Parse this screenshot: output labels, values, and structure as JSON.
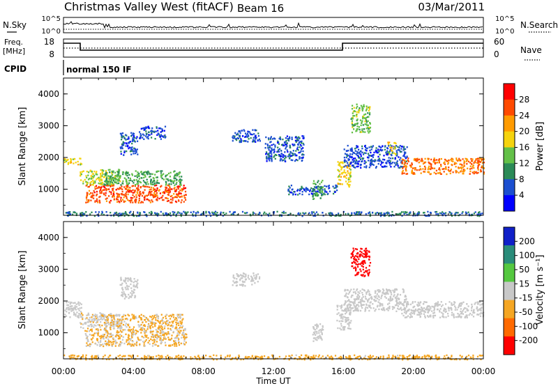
{
  "header": {
    "title": "Christmas Valley West (fitACF)",
    "beam": "Beam 16",
    "date": "03/Mar/2011"
  },
  "top_panels": {
    "nsky_label": "N.Sky",
    "nsky_ticks": [
      "10^5",
      "10^0"
    ],
    "nsearch_label": "N.Search",
    "nsearch_ticks": [
      "10^5",
      "10^0"
    ],
    "freq_label_1": "Freq.",
    "freq_label_2": "[MHz]",
    "freq_ticks": [
      "18",
      "8"
    ],
    "nave_label": "Nave",
    "nave_ticks": [
      "60",
      "0"
    ],
    "cpid_label": "CPID",
    "cpid_value": "normal 150 IF"
  },
  "colors": {
    "power": [
      "#0000ff",
      "#1c4fd0",
      "#2b8a57",
      "#63c048",
      "#f5d30e",
      "#ff9b00",
      "#ff4a00",
      "#ff0000"
    ],
    "velocity": [
      "#1020c8",
      "#2a8c7a",
      "#55c840",
      "#c8c8c8",
      "#f5a623",
      "#ff6a00",
      "#ff0000"
    ]
  },
  "chart_data": [
    {
      "type": "heatmap",
      "name": "power",
      "ylabel": "Slant Range [km]",
      "yticks": [
        "4000",
        "3000",
        "2000",
        "1000"
      ],
      "ylim": [
        180,
        4500
      ],
      "xlim": [
        0,
        24
      ],
      "colorbar_label": "Power [dB]",
      "colorbar_ticks": [
        "28",
        "24",
        "20",
        "16",
        "12",
        "8",
        "4"
      ],
      "colorbar_range": [
        0,
        32
      ],
      "features": [
        {
          "t": [
            0.0,
            1.0
          ],
          "range": [
            1780,
            2000
          ],
          "value": 18
        },
        {
          "t": [
            0.9,
            3.2
          ],
          "range": [
            1150,
            1650
          ],
          "value": 16
        },
        {
          "t": [
            1.2,
            7.0
          ],
          "range": [
            600,
            1150
          ],
          "value": 26
        },
        {
          "t": [
            2.3,
            6.8
          ],
          "range": [
            1150,
            1600
          ],
          "value": 12
        },
        {
          "t": [
            3.2,
            4.2
          ],
          "range": [
            2100,
            2800
          ],
          "value": 6
        },
        {
          "t": [
            4.3,
            5.8
          ],
          "range": [
            2600,
            3000
          ],
          "value": 6
        },
        {
          "t": [
            9.6,
            11.2
          ],
          "range": [
            2500,
            2900
          ],
          "value": 6
        },
        {
          "t": [
            11.5,
            13.7
          ],
          "range": [
            1900,
            2700
          ],
          "value": 6
        },
        {
          "t": [
            12.8,
            15.6
          ],
          "range": [
            850,
            1150
          ],
          "value": 6
        },
        {
          "t": [
            14.2,
            14.8
          ],
          "range": [
            700,
            1300
          ],
          "value": 12
        },
        {
          "t": [
            15.6,
            16.4
          ],
          "range": [
            1100,
            1900
          ],
          "value": 18
        },
        {
          "t": [
            16.4,
            17.5
          ],
          "range": [
            2800,
            3700
          ],
          "value": 14
        },
        {
          "t": [
            16.0,
            19.6
          ],
          "range": [
            1700,
            2400
          ],
          "value": 6
        },
        {
          "t": [
            18.5,
            19.0
          ],
          "range": [
            2100,
            2500
          ],
          "value": 18
        },
        {
          "t": [
            19.3,
            24.0
          ],
          "range": [
            1500,
            2000
          ],
          "value": 24
        },
        {
          "t": [
            0.0,
            24.0
          ],
          "range": [
            180,
            320
          ],
          "value": 8
        }
      ]
    },
    {
      "type": "heatmap",
      "name": "velocity",
      "ylabel": "Slant Range [km]",
      "yticks": [
        "4000",
        "3000",
        "2000",
        "1000"
      ],
      "ylim": [
        180,
        4500
      ],
      "xlim": [
        0,
        24
      ],
      "xlabel": "Time UT",
      "xticks": [
        "00:00",
        "04:00",
        "08:00",
        "12:00",
        "16:00",
        "20:00",
        "00:00"
      ],
      "colorbar_label": "Velocity [m s⁻¹]",
      "colorbar_ticks": [
        "200",
        "100",
        "50",
        "15",
        "-15",
        "-50",
        "-100",
        "-200"
      ],
      "colorbar_range": [
        -250,
        250
      ],
      "features": [
        {
          "t": [
            0.0,
            1.0
          ],
          "range": [
            1500,
            2000
          ],
          "value": 0
        },
        {
          "t": [
            0.9,
            3.2
          ],
          "range": [
            1150,
            1650
          ],
          "value": -30
        },
        {
          "t": [
            1.2,
            7.0
          ],
          "range": [
            600,
            1150
          ],
          "value": -40
        },
        {
          "t": [
            2.3,
            6.8
          ],
          "range": [
            1150,
            1600
          ],
          "value": -40
        },
        {
          "t": [
            3.2,
            4.2
          ],
          "range": [
            2100,
            2800
          ],
          "value": 0
        },
        {
          "t": [
            9.6,
            11.2
          ],
          "range": [
            2500,
            2900
          ],
          "value": 0
        },
        {
          "t": [
            14.2,
            14.8
          ],
          "range": [
            700,
            1300
          ],
          "value": 0
        },
        {
          "t": [
            15.6,
            16.4
          ],
          "range": [
            1100,
            1900
          ],
          "value": 0
        },
        {
          "t": [
            16.4,
            17.5
          ],
          "range": [
            2800,
            3700
          ],
          "value": -200
        },
        {
          "t": [
            16.0,
            19.6
          ],
          "range": [
            1700,
            2400
          ],
          "value": 0
        },
        {
          "t": [
            19.3,
            24.0
          ],
          "range": [
            1500,
            2000
          ],
          "value": 0
        },
        {
          "t": [
            0.0,
            24.0
          ],
          "range": [
            180,
            320
          ],
          "value": -50
        }
      ]
    }
  ]
}
